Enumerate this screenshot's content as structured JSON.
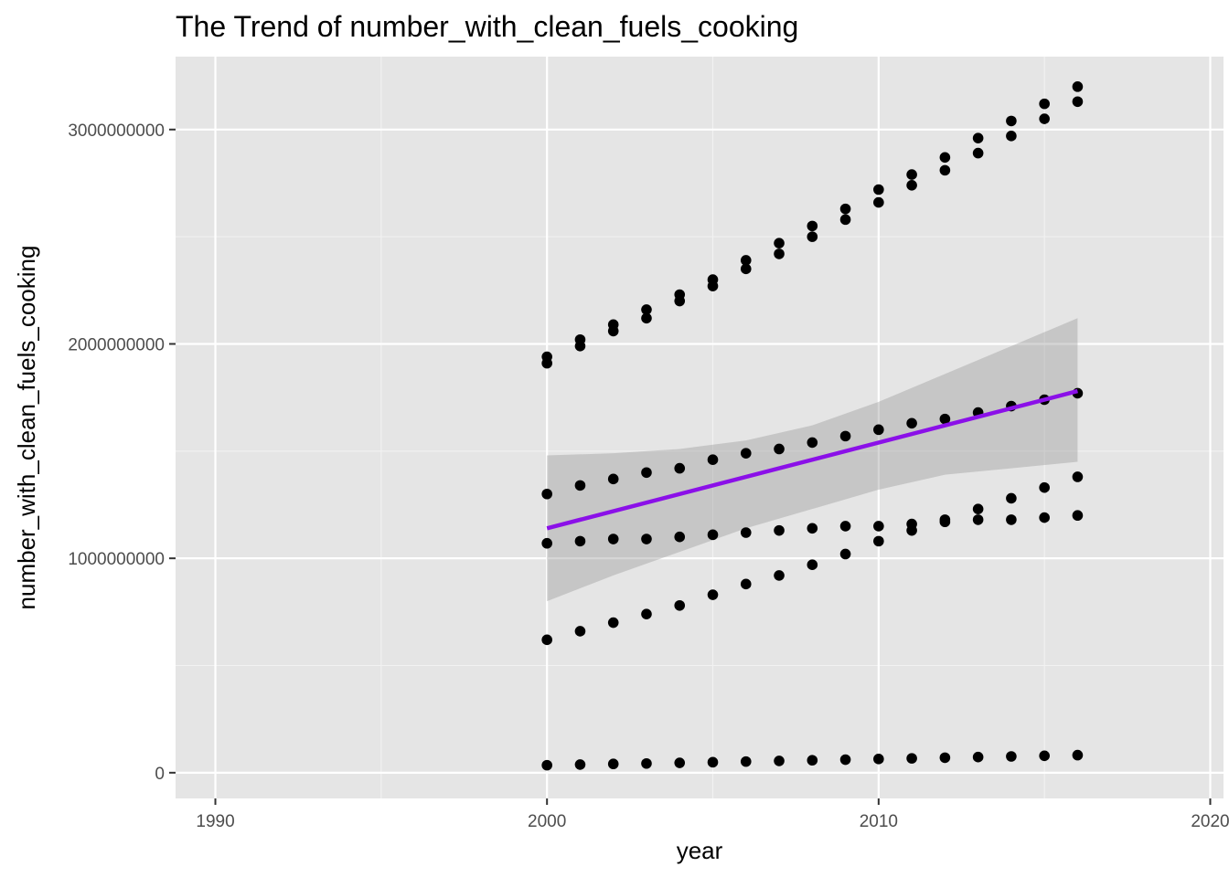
{
  "chart_data": {
    "type": "scatter",
    "title": "The Trend of number_with_clean_fuels_cooking",
    "xlabel": "year",
    "ylabel": "number_with_clean_fuels_cooking",
    "xlim": [
      1988.8,
      2020.4
    ],
    "ylim": [
      -120000000,
      3340000000
    ],
    "x_ticks": [
      1990,
      2000,
      2010,
      2020
    ],
    "x_tick_labels": [
      "1990",
      "2000",
      "2010",
      "2020"
    ],
    "y_ticks": [
      0,
      1000000000,
      2000000000,
      3000000000
    ],
    "y_tick_labels": [
      "0",
      "1000000000",
      "2000000000",
      "3000000000"
    ],
    "grid": true,
    "background": "#e5e5e5",
    "point_color": "#000000",
    "trend_color": "#8b10e8",
    "ribbon_color": "#999999",
    "x": [
      2000,
      2001,
      2002,
      2003,
      2004,
      2005,
      2006,
      2007,
      2008,
      2009,
      2010,
      2011,
      2012,
      2013,
      2014,
      2015,
      2016
    ],
    "series": [
      {
        "values": [
          1940000000,
          2020000000,
          2090000000,
          2160000000,
          2230000000,
          2300000000,
          2390000000,
          2470000000,
          2550000000,
          2630000000,
          2720000000,
          2790000000,
          2870000000,
          2960000000,
          3040000000,
          3120000000,
          3200000000
        ]
      },
      {
        "values": [
          1910000000,
          1990000000,
          2060000000,
          2120000000,
          2200000000,
          2270000000,
          2350000000,
          2420000000,
          2500000000,
          2580000000,
          2660000000,
          2740000000,
          2810000000,
          2890000000,
          2970000000,
          3050000000,
          3130000000
        ]
      },
      {
        "values": [
          1300000000,
          1340000000,
          1370000000,
          1400000000,
          1420000000,
          1460000000,
          1490000000,
          1510000000,
          1540000000,
          1570000000,
          1600000000,
          1630000000,
          1650000000,
          1680000000,
          1710000000,
          1740000000,
          1770000000
        ]
      },
      {
        "values": [
          1070000000,
          1080000000,
          1090000000,
          1090000000,
          1100000000,
          1110000000,
          1120000000,
          1130000000,
          1140000000,
          1150000000,
          1150000000,
          1160000000,
          1170000000,
          1180000000,
          1180000000,
          1190000000,
          1200000000
        ]
      },
      {
        "values": [
          620000000,
          660000000,
          700000000,
          740000000,
          780000000,
          830000000,
          880000000,
          920000000,
          970000000,
          1020000000,
          1080000000,
          1130000000,
          1180000000,
          1230000000,
          1280000000,
          1330000000,
          1380000000
        ]
      },
      {
        "values": [
          35000000,
          38000000,
          41000000,
          43000000,
          46000000,
          49000000,
          52000000,
          55000000,
          58000000,
          61000000,
          64000000,
          67000000,
          70000000,
          73000000,
          76000000,
          79000000,
          82000000
        ]
      }
    ],
    "trend": {
      "x": [
        2000,
        2016
      ],
      "y": [
        1140000000,
        1780000000
      ]
    },
    "confidence_band": {
      "x": [
        2000,
        2002,
        2004,
        2006,
        2008,
        2010,
        2012,
        2014,
        2016
      ],
      "upper": [
        1480000000,
        1490000000,
        1510000000,
        1550000000,
        1620000000,
        1730000000,
        1860000000,
        1990000000,
        2120000000
      ],
      "lower": [
        800000000,
        920000000,
        1030000000,
        1140000000,
        1230000000,
        1320000000,
        1390000000,
        1420000000,
        1450000000
      ]
    }
  }
}
